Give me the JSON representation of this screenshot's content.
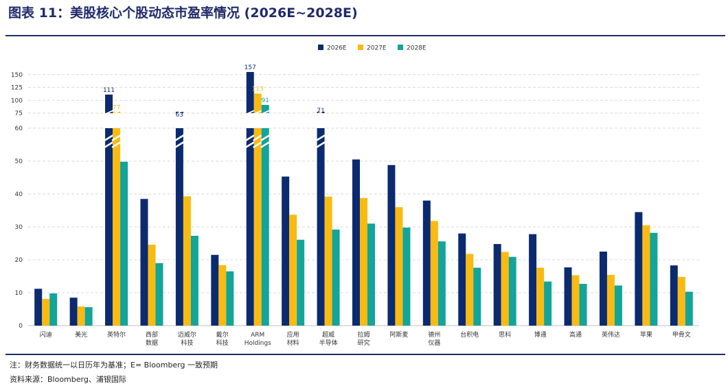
{
  "title": "图表 11：美股核心个股动态市盈率情况 (2026E~2028E)",
  "note": "注：财务数据统一以日历年为基准；E= Bloomberg 一致预期",
  "source": "资料来源：Bloomberg、浦银国际",
  "colors": {
    "2026E": "#0b2a6f",
    "2027E": "#f9bb12",
    "2028E": "#13a49a",
    "grid": "#d9d9d9",
    "axis": "#bfbfbf"
  },
  "chart_data": {
    "type": "bar",
    "broken_axis": true,
    "legend_position": "top-center",
    "grid": true,
    "categories": [
      "闪迪",
      "美光",
      "英特尔",
      "西部\n数据",
      "迈威尔\n科技",
      "戴尔\n科技",
      "ARM\nHoldings",
      "应用\n材料",
      "超威\n半导体",
      "拉姆\n研究",
      "阿斯麦",
      "德州\n仪器",
      "台积电",
      "思科",
      "博通",
      "高通",
      "英伟达",
      "苹果",
      "甲骨文"
    ],
    "series": [
      {
        "name": "2026E",
        "values": [
          11.2,
          8.5,
          111,
          38.5,
          63,
          21.5,
          157,
          45.3,
          71,
          50.5,
          48.8,
          38,
          28,
          24.8,
          27.8,
          17.7,
          22.5,
          34.5,
          18.3
        ]
      },
      {
        "name": "2027E",
        "values": [
          8.1,
          5.8,
          77,
          24.6,
          39.3,
          18.4,
          113,
          33.7,
          39.2,
          38.8,
          36,
          31.8,
          21.8,
          22.4,
          17.6,
          15.3,
          15.4,
          30.5,
          14.8
        ]
      },
      {
        "name": "2028E",
        "values": [
          9.8,
          5.6,
          49.8,
          19,
          27.3,
          16.5,
          91,
          26.1,
          29.2,
          31,
          29.8,
          25.6,
          17.6,
          20.9,
          13.4,
          12.7,
          12.2,
          28.2,
          10.3
        ]
      }
    ],
    "data_labels": [
      {
        "category": "英特尔",
        "series": "2026E",
        "text": "111"
      },
      {
        "category": "英特尔",
        "series": "2027E",
        "text": "77"
      },
      {
        "category": "迈威尔\n科技",
        "series": "2026E",
        "text": "63"
      },
      {
        "category": "ARM\nHoldings",
        "series": "2026E",
        "text": "157"
      },
      {
        "category": "ARM\nHoldings",
        "series": "2027E",
        "text": "113"
      },
      {
        "category": "ARM\nHoldings",
        "series": "2028E",
        "text": "91"
      },
      {
        "category": "超威\n半导体",
        "series": "2026E",
        "text": "71"
      }
    ],
    "lower_axis": {
      "ylim": [
        0,
        60
      ],
      "ticks": [
        "0",
        "10",
        "20",
        "30",
        "40",
        "50",
        "60"
      ]
    },
    "upper_axis": {
      "ylim": [
        75,
        155
      ],
      "ticks": [
        "75",
        "100",
        "125",
        "150"
      ]
    }
  }
}
